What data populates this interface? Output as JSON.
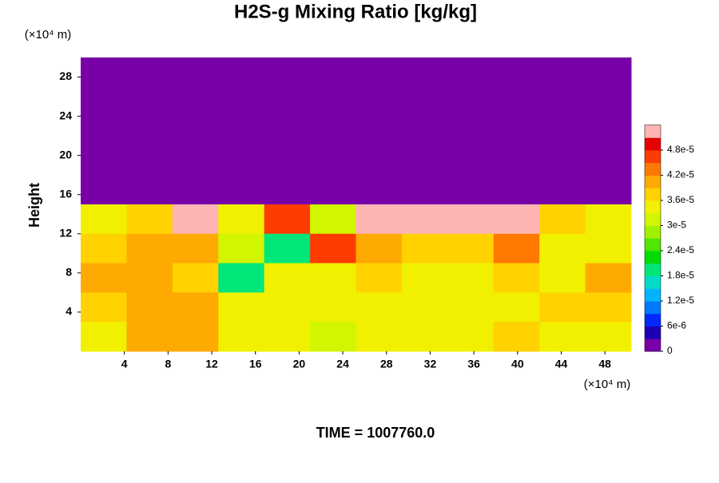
{
  "chart_data": {
    "type": "heatmap",
    "title": "H2S-g Mixing Ratio [kg/kg]",
    "y_unit": "(×10⁴ m)",
    "x_unit": "(×10⁴ m)",
    "ylabel": "Height",
    "footer": "TIME = 1007760.0",
    "xlim": [
      0,
      50.4
    ],
    "ylim": [
      0,
      30
    ],
    "xticks": [
      4,
      8,
      12,
      16,
      20,
      24,
      28,
      32,
      36,
      40,
      44,
      48
    ],
    "yticks": [
      4,
      8,
      12,
      16,
      20,
      24,
      28
    ],
    "x": [
      2.1,
      6.3,
      10.5,
      14.7,
      18.9,
      23.1,
      27.3,
      31.5,
      35.7,
      39.9,
      44.1,
      48.3
    ],
    "y": [
      28.5,
      25.5,
      22.5,
      19.5,
      16.5,
      13.5,
      10.5,
      7.5,
      4.5,
      1.5
    ],
    "z": [
      [
        0,
        0,
        0,
        0,
        0,
        0,
        0,
        0,
        0,
        0,
        0,
        0
      ],
      [
        0,
        0,
        0,
        0,
        0,
        0,
        0,
        0,
        0,
        0,
        0,
        0
      ],
      [
        0,
        0,
        0,
        0,
        0,
        0,
        0,
        0,
        0,
        0,
        0,
        0
      ],
      [
        0,
        0,
        0,
        0,
        0,
        0,
        0,
        0,
        0,
        0,
        0,
        0
      ],
      [
        0,
        0,
        0,
        0,
        0,
        0,
        0,
        0,
        0,
        0,
        0,
        0
      ],
      [
        3.4e-05,
        3.6e-05,
        5.2e-05,
        3.3e-05,
        4.5e-05,
        3e-05,
        5.2e-05,
        5.2e-05,
        5.2e-05,
        5.2e-05,
        3.6e-05,
        3.5e-05
      ],
      [
        3.8e-05,
        4e-05,
        3.9e-05,
        3e-05,
        2e-05,
        4.6e-05,
        4e-05,
        3.6e-05,
        3.6e-05,
        4.2e-05,
        3.5e-05,
        3.4e-05
      ],
      [
        4e-05,
        4e-05,
        3.6e-05,
        2e-05,
        3.4e-05,
        3.4e-05,
        3.6e-05,
        3.5e-05,
        3.5e-05,
        3.6e-05,
        3.5e-05,
        3.9e-05
      ],
      [
        3.8e-05,
        4e-05,
        3.9e-05,
        3.5e-05,
        3.4e-05,
        3.5e-05,
        3.4e-05,
        3.3e-05,
        3.5e-05,
        3.4e-05,
        3.6e-05,
        3.6e-05
      ],
      [
        3.5e-05,
        3.9e-05,
        3.9e-05,
        3.4e-05,
        3.5e-05,
        3e-05,
        3.4e-05,
        3.4e-05,
        3.5e-05,
        3.6e-05,
        3.5e-05,
        3.5e-05
      ]
    ],
    "zlim": [
      0,
      5.4e-05
    ],
    "zticks": [
      0,
      {
        "value": 6e-06,
        "label": "6e-6"
      },
      {
        "value": 1.2e-05,
        "label": "1.2e-5"
      },
      {
        "value": 1.8e-05,
        "label": "1.8e-5"
      },
      {
        "value": 2.4e-05,
        "label": "2.4e-5"
      },
      {
        "value": 3e-05,
        "label": "3e-5"
      },
      {
        "value": 3.6e-05,
        "label": "3.6e-5"
      },
      {
        "value": 4.2e-05,
        "label": "4.2e-5"
      },
      {
        "value": 4.8e-05,
        "label": "4.8e-5"
      }
    ],
    "colors": [
      "#7800a8",
      "#1e00b4",
      "#0028ff",
      "#0078ff",
      "#00b4ff",
      "#00dcc8",
      "#00e678",
      "#00dc00",
      "#50e600",
      "#a0f000",
      "#d2f500",
      "#f0f000",
      "#ffd200",
      "#ffaa00",
      "#ff7800",
      "#ff3c00",
      "#e60000",
      "#ffb4b4"
    ]
  }
}
